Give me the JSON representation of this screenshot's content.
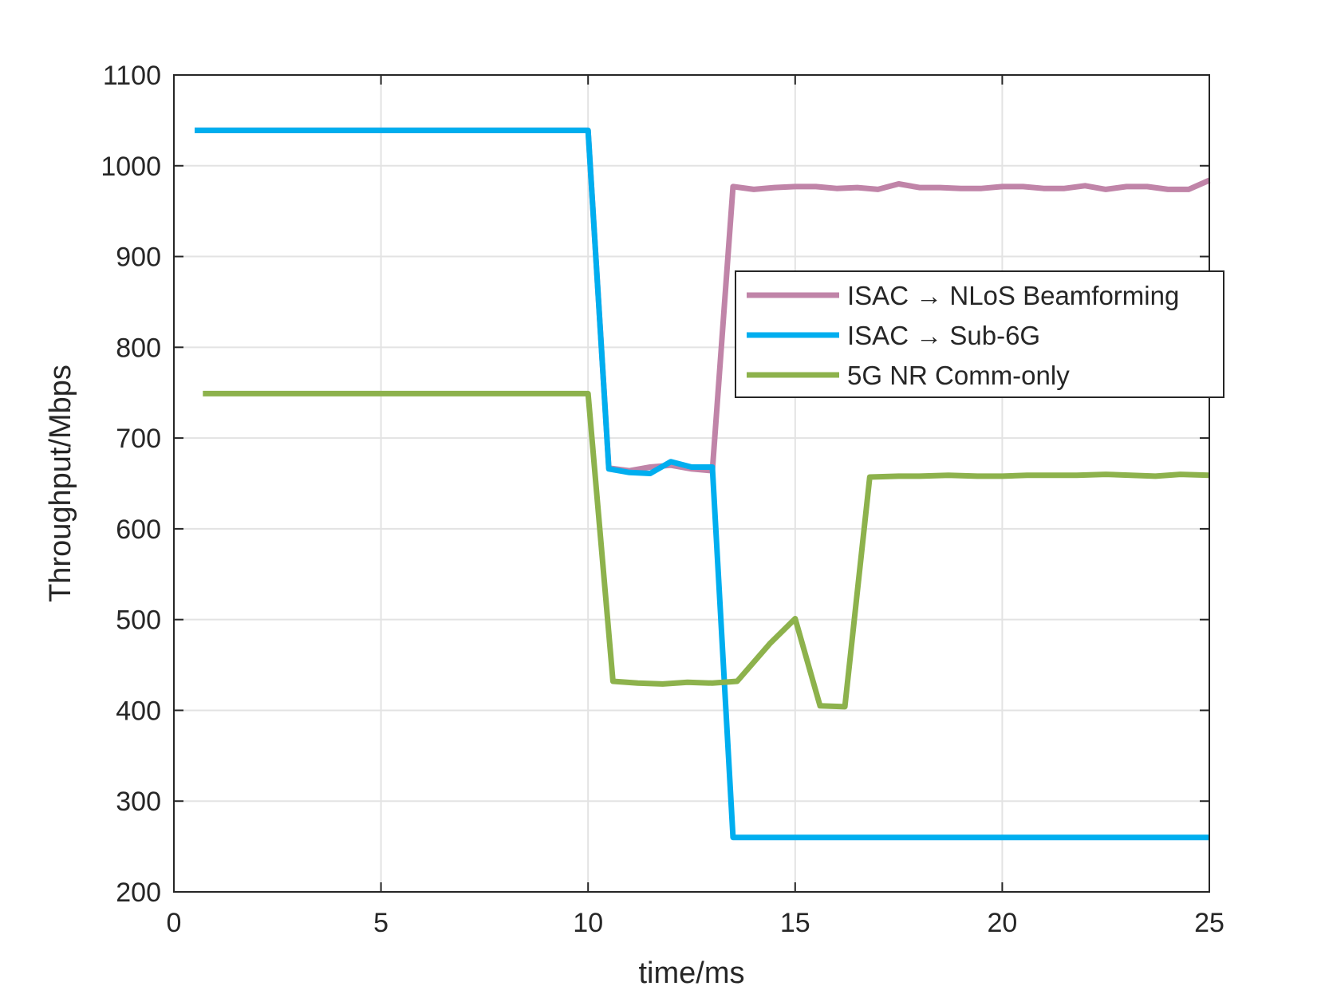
{
  "chart_data": {
    "type": "line",
    "xlabel": "time/ms",
    "ylabel": "Throughput/Mbps",
    "xlim": [
      0,
      25
    ],
    "ylim": [
      200,
      1100
    ],
    "xticks": [
      0,
      5,
      10,
      15,
      20,
      25
    ],
    "yticks": [
      200,
      300,
      400,
      500,
      600,
      700,
      800,
      900,
      1000,
      1100
    ],
    "grid": true,
    "legend_position": "upper-right",
    "series": [
      {
        "name": "ISAC → NLoS Beamforming",
        "color": "#C084A8",
        "x": [
          0.5,
          1,
          2,
          3,
          4,
          5,
          6,
          7,
          8,
          9,
          10,
          10.5,
          11,
          11.5,
          12,
          12.5,
          13,
          13.5,
          14,
          14.5,
          15,
          15.5,
          16,
          16.5,
          17,
          17.5,
          18,
          18.5,
          19,
          19.5,
          20,
          20.5,
          21,
          21.5,
          22,
          22.5,
          23,
          23.5,
          24,
          24.5,
          25
        ],
        "y": [
          1039,
          1039,
          1039,
          1039,
          1039,
          1039,
          1039,
          1039,
          1039,
          1039,
          1039,
          667,
          664,
          668,
          670,
          666,
          664,
          977,
          974,
          976,
          977,
          977,
          975,
          976,
          974,
          980,
          976,
          976,
          975,
          975,
          977,
          977,
          975,
          975,
          978,
          974,
          977,
          977,
          974,
          974,
          984
        ]
      },
      {
        "name": "ISAC → Sub-6G",
        "color": "#00AEEF",
        "x": [
          0.5,
          1,
          2,
          3,
          4,
          5,
          6,
          7,
          8,
          9,
          10,
          10.5,
          11,
          11.5,
          12,
          12.5,
          13,
          13.5,
          14,
          15,
          16,
          17,
          18,
          19,
          20,
          21,
          22,
          23,
          24,
          25
        ],
        "y": [
          1039,
          1039,
          1039,
          1039,
          1039,
          1039,
          1039,
          1039,
          1039,
          1039,
          1039,
          666,
          662,
          661,
          674,
          668,
          668,
          260,
          260,
          260,
          260,
          260,
          260,
          260,
          260,
          260,
          260,
          260,
          260,
          260
        ]
      },
      {
        "name": "5G NR Comm-only",
        "color": "#8DB24C",
        "x": [
          0.7,
          1,
          2,
          3,
          4,
          5,
          6,
          7,
          8,
          9,
          10,
          10.6,
          11.2,
          11.8,
          12.4,
          13,
          13.6,
          14.4,
          15,
          15.6,
          16.2,
          16.8,
          17.5,
          18,
          18.7,
          19.4,
          20,
          20.6,
          21.2,
          21.8,
          22.5,
          23.1,
          23.7,
          24.3,
          25
        ],
        "y": [
          749,
          749,
          749,
          749,
          749,
          749,
          749,
          749,
          749,
          749,
          749,
          432,
          430,
          429,
          431,
          430,
          432,
          474,
          501,
          405,
          404,
          657,
          658,
          658,
          659,
          658,
          658,
          659,
          659,
          659,
          660,
          659,
          658,
          660,
          659
        ]
      }
    ]
  }
}
